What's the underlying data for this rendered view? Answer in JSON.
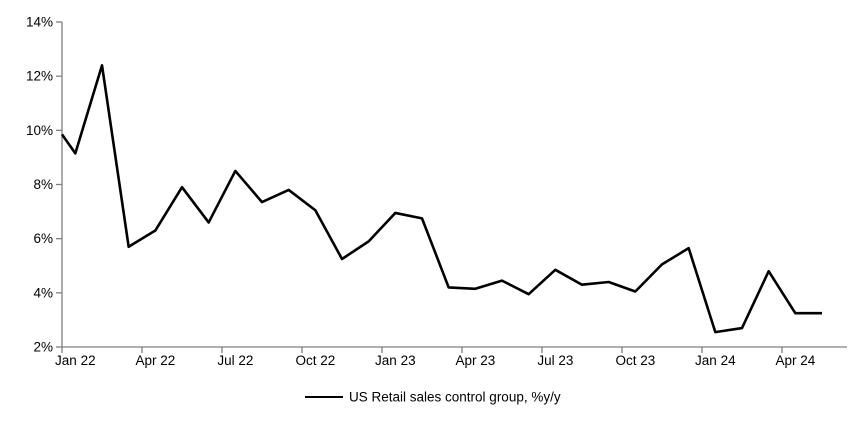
{
  "chart_data": {
    "type": "line",
    "title": "",
    "xlabel": "",
    "ylabel": "",
    "ylim": [
      2,
      14
    ],
    "grid": false,
    "legend_position": "bottom-center",
    "axis_color": "#808080",
    "line_color": "#000000",
    "x": [
      "Jan 22",
      "Feb 22",
      "Mar 22",
      "Apr 22",
      "May 22",
      "Jun 22",
      "Jul 22",
      "Aug 22",
      "Sep 22",
      "Oct 22",
      "Nov 22",
      "Dec 22",
      "Jan 23",
      "Feb 23",
      "Mar 23",
      "Apr 23",
      "May 23",
      "Jun 23",
      "Jul 23",
      "Aug 23",
      "Sep 23",
      "Oct 23",
      "Nov 23",
      "Dec 23",
      "Jan 24",
      "Feb 24",
      "Mar 24",
      "Apr 24",
      "May 24"
    ],
    "series": [
      {
        "name": "US Retail sales control group, %y/y",
        "color": "#000000",
        "values": [
          9.15,
          12.4,
          5.7,
          6.3,
          7.9,
          6.6,
          8.5,
          7.35,
          7.8,
          7.05,
          5.25,
          5.9,
          6.95,
          6.75,
          4.2,
          4.15,
          4.45,
          3.95,
          4.85,
          4.3,
          4.4,
          4.05,
          5.05,
          5.65,
          2.55,
          2.7,
          4.8,
          3.25,
          3.25
        ]
      }
    ],
    "line_enters_left_axis_at_value": 9.85,
    "ytick_labels": [
      "2%",
      "4%",
      "6%",
      "8%",
      "10%",
      "12%",
      "14%"
    ],
    "ytick_values": [
      2,
      4,
      6,
      8,
      10,
      12,
      14
    ],
    "xtick_labels": [
      "Jan 22",
      "Apr 22",
      "Jul 22",
      "Oct 22",
      "Jan 23",
      "Apr 23",
      "Jul 23",
      "Oct 23",
      "Jan 24",
      "Apr 24"
    ]
  },
  "legend": {
    "label": "US Retail sales control group, %y/y"
  }
}
